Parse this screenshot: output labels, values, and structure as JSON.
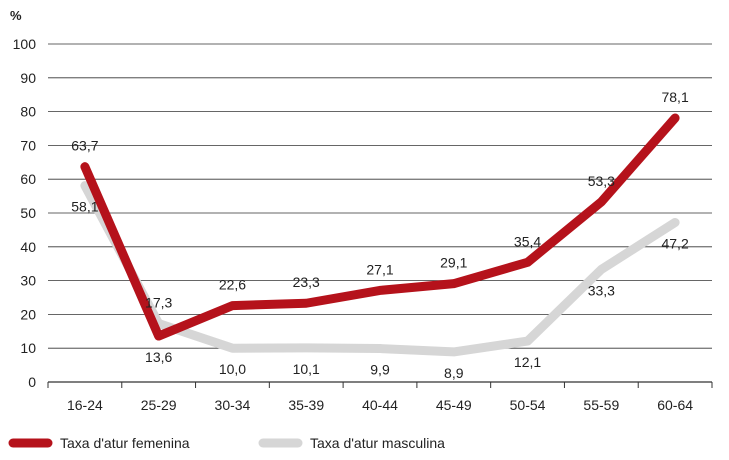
{
  "chart_data": {
    "type": "line",
    "ylabel": "%",
    "ylim": [
      0,
      100
    ],
    "yticks": [
      0,
      10,
      20,
      30,
      40,
      50,
      60,
      70,
      80,
      90,
      100
    ],
    "categories": [
      "16-24",
      "25-29",
      "30-34",
      "35-39",
      "40-44",
      "45-49",
      "50-54",
      "55-59",
      "60-64"
    ],
    "series": [
      {
        "name": "Taxa d'atur femenina",
        "color": "#b5121b",
        "values": [
          63.7,
          13.6,
          22.6,
          23.3,
          27.1,
          29.1,
          35.4,
          53.3,
          78.1
        ],
        "value_labels": [
          "63,7",
          "13,6",
          "22,6",
          "23,3",
          "27,1",
          "29,1",
          "35,4",
          "53,3",
          "78,1"
        ]
      },
      {
        "name": "Taxa d'atur masculina",
        "color": "#d6d6d6",
        "values": [
          58.1,
          17.3,
          10.0,
          10.1,
          9.9,
          8.9,
          12.1,
          33.3,
          47.2
        ],
        "value_labels": [
          "58,1",
          "17,3",
          "10,0",
          "10,1",
          "9,9",
          "8,9",
          "12,1",
          "33,3",
          "47,2"
        ]
      }
    ],
    "grid": true,
    "legend": "bottom-left"
  }
}
